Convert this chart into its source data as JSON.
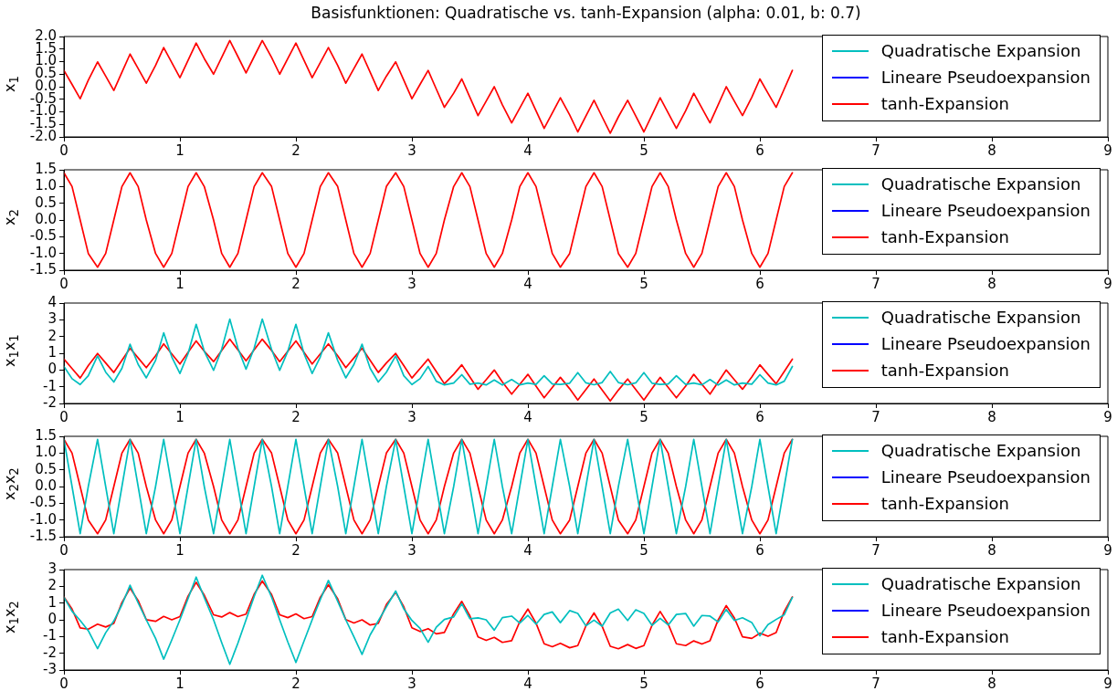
{
  "chart_data": [
    {
      "type": "line",
      "title": "Basisfunktionen: Quadratische vs. tanh-Expansion (alpha: 0.01, b: 0.7)",
      "ylabel": "x$_{1}$",
      "legend": "top right",
      "marker": "none",
      "line_style": "solid",
      "grid": false,
      "xlim": [
        0,
        9
      ],
      "xticks": [
        0,
        1,
        2,
        3,
        4,
        5,
        6,
        7,
        8,
        9
      ],
      "ylim": [
        -2,
        2
      ],
      "yticks": [
        {
          "value": -2,
          "label": "-2.0"
        },
        {
          "value": -1.5,
          "label": "-1.5"
        },
        {
          "value": -1,
          "label": "-1.0"
        },
        {
          "value": -0.5,
          "label": "-0.5"
        },
        {
          "value": 0,
          "label": "0.0"
        },
        {
          "value": 0.5,
          "label": "0.5"
        },
        {
          "value": 1,
          "label": "1.0"
        },
        {
          "value": 1.5,
          "label": "1.5"
        },
        {
          "value": 2,
          "label": "2.0"
        }
      ],
      "x": [
        0,
        0.07,
        0.14,
        0.21,
        0.29,
        0.36,
        0.43,
        0.5,
        0.57,
        0.64,
        0.71,
        0.79,
        0.86,
        0.93,
        1.0,
        1.07,
        1.14,
        1.21,
        1.29,
        1.36,
        1.43,
        1.5,
        1.57,
        1.64,
        1.71,
        1.79,
        1.86,
        1.93,
        2.0,
        2.07,
        2.14,
        2.21,
        2.28,
        2.36,
        2.43,
        2.5,
        2.57,
        2.64,
        2.71,
        2.78,
        2.86,
        2.93,
        3.0,
        3.07,
        3.14,
        3.21,
        3.28,
        3.36,
        3.43,
        3.5,
        3.57,
        3.64,
        3.71,
        3.78,
        3.86,
        3.93,
        4.0,
        4.07,
        4.14,
        4.21,
        4.28,
        4.36,
        4.43,
        4.5,
        4.57,
        4.64,
        4.71,
        4.78,
        4.86,
        4.93,
        5.0,
        5.07,
        5.14,
        5.21,
        5.28,
        5.36,
        5.43,
        5.5,
        5.57,
        5.64,
        5.71,
        5.78,
        5.85,
        5.93,
        6.0,
        6.07,
        6.14,
        6.21,
        6.28
      ],
      "series": [
        {
          "name": "Quadratische Expansion",
          "color": "#00bfbf",
          "values": [
            null,
            null,
            null,
            null,
            null,
            null,
            null,
            null,
            null,
            null,
            null,
            null,
            null,
            null,
            null,
            null,
            null,
            null,
            null,
            null,
            null,
            null,
            null,
            null,
            null,
            null,
            null,
            null,
            null,
            null,
            null,
            null,
            null,
            null,
            null,
            null,
            null,
            null,
            null,
            null,
            null,
            null,
            null,
            null,
            null,
            null,
            null,
            null,
            null,
            null,
            null,
            null,
            null,
            null,
            null,
            null,
            null,
            null,
            null,
            null,
            null,
            null,
            null,
            null,
            null,
            null,
            null,
            null,
            null,
            null,
            null,
            null,
            null,
            null,
            null,
            null,
            null,
            null,
            null,
            null,
            null,
            null,
            null,
            null,
            null,
            null,
            null,
            null,
            null
          ]
        },
        {
          "name": "Lineare Pseudoexpansion",
          "color": "#0000ff",
          "values": [
            null,
            null,
            null,
            null,
            null,
            null,
            null,
            null,
            null,
            null,
            null,
            null,
            null,
            null,
            null,
            null,
            null,
            null,
            null,
            null,
            null,
            null,
            null,
            null,
            null,
            null,
            null,
            null,
            null,
            null,
            null,
            null,
            null,
            null,
            null,
            null,
            null,
            null,
            null,
            null,
            null,
            null,
            null,
            null,
            null,
            null,
            null,
            null,
            null,
            null,
            null,
            null,
            null,
            null,
            null,
            null,
            null,
            null,
            null,
            null,
            null,
            null,
            null,
            null,
            null,
            null,
            null,
            null,
            null,
            null,
            null,
            null,
            null,
            null,
            null,
            null,
            null,
            null,
            null,
            null,
            null,
            null,
            null,
            null,
            null,
            null,
            null,
            null,
            null
          ]
        },
        {
          "name": "tanh-Expansion",
          "color": "#ff0000",
          "values": [
            0.65,
            0.09,
            -0.48,
            0.26,
            0.99,
            0.42,
            -0.15,
            0.58,
            1.3,
            0.72,
            0.14,
            0.85,
            1.56,
            0.96,
            0.36,
            1.05,
            1.74,
            1.12,
            0.5,
            1.17,
            1.84,
            1.2,
            0.55,
            1.2,
            1.84,
            1.17,
            0.5,
            1.12,
            1.74,
            1.05,
            0.36,
            0.96,
            1.56,
            0.85,
            0.14,
            0.72,
            1.3,
            0.58,
            -0.15,
            0.42,
            0.99,
            0.26,
            -0.48,
            0.09,
            0.65,
            -0.09,
            -0.82,
            -0.26,
            0.31,
            -0.42,
            -1.15,
            -0.58,
            0,
            -0.72,
            -1.44,
            -0.85,
            -0.26,
            -0.96,
            -1.66,
            -1.05,
            -0.44,
            -1.12,
            -1.8,
            -1.17,
            -0.54,
            -1.2,
            -1.85,
            -1.2,
            -0.54,
            -1.17,
            -1.8,
            -1.12,
            -0.44,
            -1.05,
            -1.66,
            -0.96,
            -0.26,
            -0.85,
            -1.44,
            -0.72,
            0,
            -0.58,
            -1.15,
            -0.42,
            0.31,
            -0.26,
            -0.82,
            -0.09,
            0.65
          ]
        }
      ]
    },
    {
      "type": "line",
      "ylabel": "x$_{2}$",
      "legend": "top right",
      "marker": "none",
      "line_style": "solid",
      "grid": false,
      "xlim": [
        0,
        9
      ],
      "xticks": [
        0,
        1,
        2,
        3,
        4,
        5,
        6,
        7,
        8,
        9
      ],
      "ylim": [
        -1.5,
        1.5
      ],
      "yticks": [
        {
          "value": -1.5,
          "label": "-1.5"
        },
        {
          "value": -1,
          "label": "-1.0"
        },
        {
          "value": -0.5,
          "label": "-0.5"
        },
        {
          "value": 0,
          "label": "0.0"
        },
        {
          "value": 0.5,
          "label": "0.5"
        },
        {
          "value": 1,
          "label": "1.0"
        },
        {
          "value": 1.5,
          "label": "1.5"
        }
      ],
      "x": [
        0,
        0.07,
        0.14,
        0.21,
        0.29,
        0.36,
        0.43,
        0.5,
        0.57,
        0.64,
        0.71,
        0.79,
        0.86,
        0.93,
        1.0,
        1.07,
        1.14,
        1.21,
        1.29,
        1.36,
        1.43,
        1.5,
        1.57,
        1.64,
        1.71,
        1.79,
        1.86,
        1.93,
        2.0,
        2.07,
        2.14,
        2.21,
        2.28,
        2.36,
        2.43,
        2.5,
        2.57,
        2.64,
        2.71,
        2.78,
        2.86,
        2.93,
        3.0,
        3.07,
        3.14,
        3.21,
        3.28,
        3.36,
        3.43,
        3.5,
        3.57,
        3.64,
        3.71,
        3.78,
        3.86,
        3.93,
        4.0,
        4.07,
        4.14,
        4.21,
        4.28,
        4.36,
        4.43,
        4.5,
        4.57,
        4.64,
        4.71,
        4.78,
        4.86,
        4.93,
        5.0,
        5.07,
        5.14,
        5.21,
        5.28,
        5.36,
        5.43,
        5.5,
        5.57,
        5.64,
        5.71,
        5.78,
        5.85,
        5.93,
        6.0,
        6.07,
        6.14,
        6.21,
        6.28
      ],
      "series": [
        {
          "name": "Quadratische Expansion",
          "color": "#00bfbf",
          "values": [
            null,
            null,
            null,
            null,
            null,
            null,
            null,
            null,
            null,
            null,
            null,
            null,
            null,
            null,
            null,
            null,
            null,
            null,
            null,
            null,
            null,
            null,
            null,
            null,
            null,
            null,
            null,
            null,
            null,
            null,
            null,
            null,
            null,
            null,
            null,
            null,
            null,
            null,
            null,
            null,
            null,
            null,
            null,
            null,
            null,
            null,
            null,
            null,
            null,
            null,
            null,
            null,
            null,
            null,
            null,
            null,
            null,
            null,
            null,
            null,
            null,
            null,
            null,
            null,
            null,
            null,
            null,
            null,
            null,
            null,
            null,
            null,
            null,
            null,
            null,
            null,
            null,
            null,
            null,
            null,
            null,
            null,
            null,
            null,
            null,
            null,
            null,
            null,
            null
          ]
        },
        {
          "name": "Lineare Pseudoexpansion",
          "color": "#0000ff",
          "values": [
            null,
            null,
            null,
            null,
            null,
            null,
            null,
            null,
            null,
            null,
            null,
            null,
            null,
            null,
            null,
            null,
            null,
            null,
            null,
            null,
            null,
            null,
            null,
            null,
            null,
            null,
            null,
            null,
            null,
            null,
            null,
            null,
            null,
            null,
            null,
            null,
            null,
            null,
            null,
            null,
            null,
            null,
            null,
            null,
            null,
            null,
            null,
            null,
            null,
            null,
            null,
            null,
            null,
            null,
            null,
            null,
            null,
            null,
            null,
            null,
            null,
            null,
            null,
            null,
            null,
            null,
            null,
            null,
            null,
            null,
            null,
            null,
            null,
            null,
            null,
            null,
            null,
            null,
            null,
            null,
            null,
            null,
            null,
            null,
            null,
            null,
            null,
            null,
            null
          ]
        },
        {
          "name": "tanh-Expansion",
          "color": "#ff0000",
          "values": [
            1.41,
            1,
            0,
            -1,
            -1.41,
            -1,
            0,
            1,
            1.41,
            1,
            0,
            -1,
            -1.41,
            -1,
            0,
            1,
            1.41,
            1,
            0,
            -1,
            -1.41,
            -1,
            0,
            1,
            1.41,
            1,
            0,
            -1,
            -1.41,
            -1,
            0,
            1,
            1.41,
            1,
            0,
            -1,
            -1.41,
            -1,
            0,
            1,
            1.41,
            1,
            0,
            -1,
            -1.41,
            -1,
            0,
            1,
            1.41,
            1,
            0,
            -1,
            -1.41,
            -1,
            0,
            1,
            1.41,
            1,
            0,
            -1,
            -1.41,
            -1,
            0,
            1,
            1.41,
            1,
            0,
            -1,
            -1.41,
            -1,
            0,
            1,
            1.41,
            1,
            0,
            -1,
            -1.41,
            -1,
            0,
            1,
            1.41,
            1,
            0,
            -1,
            -1.41,
            -1,
            0,
            1,
            1.41
          ]
        }
      ]
    },
    {
      "type": "line",
      "ylabel": "x$_{1}$x$_{1}$",
      "legend": "top right",
      "marker": "none",
      "line_style": "solid",
      "grid": false,
      "xlim": [
        0,
        9
      ],
      "xticks": [
        0,
        1,
        2,
        3,
        4,
        5,
        6,
        7,
        8,
        9
      ],
      "ylim": [
        -2,
        4
      ],
      "yticks": [
        -2,
        -1,
        0,
        1,
        2,
        3,
        4
      ],
      "x": [
        0,
        0.07,
        0.14,
        0.21,
        0.29,
        0.36,
        0.43,
        0.5,
        0.57,
        0.64,
        0.71,
        0.79,
        0.86,
        0.93,
        1.0,
        1.07,
        1.14,
        1.21,
        1.29,
        1.36,
        1.43,
        1.5,
        1.57,
        1.64,
        1.71,
        1.79,
        1.86,
        1.93,
        2.0,
        2.07,
        2.14,
        2.21,
        2.28,
        2.36,
        2.43,
        2.5,
        2.57,
        2.64,
        2.71,
        2.78,
        2.86,
        2.93,
        3.0,
        3.07,
        3.14,
        3.21,
        3.28,
        3.36,
        3.43,
        3.5,
        3.57,
        3.64,
        3.71,
        3.78,
        3.86,
        3.93,
        4.0,
        4.07,
        4.14,
        4.21,
        4.28,
        4.36,
        4.43,
        4.5,
        4.57,
        4.64,
        4.71,
        4.78,
        4.86,
        4.93,
        5.0,
        5.07,
        5.14,
        5.21,
        5.28,
        5.36,
        5.43,
        5.5,
        5.57,
        5.64,
        5.71,
        5.78,
        5.85,
        5.93,
        6.0,
        6.07,
        6.14,
        6.21,
        6.28
      ],
      "series": [
        {
          "name": "Quadratische Expansion",
          "color": "#00bfbf",
          "values": [
            0.21,
            -0.52,
            -0.87,
            -0.34,
            0.84,
            -0.13,
            -0.72,
            0.1,
            1.54,
            0.33,
            -0.47,
            0.57,
            2.22,
            0.78,
            -0.21,
            0.97,
            2.73,
            1.12,
            -0.02,
            1.23,
            3.04,
            1.3,
            0.05,
            1.3,
            3.04,
            1.23,
            -0.02,
            1.12,
            2.73,
            0.97,
            -0.21,
            0.78,
            2.22,
            0.57,
            -0.47,
            0.33,
            1.54,
            0.1,
            -0.72,
            -0.13,
            0.84,
            -0.34,
            -0.87,
            -0.52,
            0.21,
            -0.67,
            -0.89,
            -0.78,
            -0.28,
            -0.85,
            -0.78,
            -0.89,
            -0.6,
            -0.9,
            -0.57,
            -0.89,
            -0.78,
            -0.86,
            -0.34,
            -0.83,
            -0.86,
            -0.79,
            -0.16,
            -0.77,
            -0.88,
            -0.75,
            -0.09,
            -0.75,
            -0.88,
            -0.77,
            -0.16,
            -0.79,
            -0.86,
            -0.83,
            -0.34,
            -0.86,
            -0.78,
            -0.89,
            -0.57,
            -0.9,
            -0.6,
            -0.89,
            -0.78,
            -0.85,
            -0.28,
            -0.78,
            -0.89,
            -0.67,
            0.21
          ]
        },
        {
          "name": "Lineare Pseudoexpansion",
          "color": "#0000ff",
          "values": [
            null,
            null,
            null,
            null,
            null,
            null,
            null,
            null,
            null,
            null,
            null,
            null,
            null,
            null,
            null,
            null,
            null,
            null,
            null,
            null,
            null,
            null,
            null,
            null,
            null,
            null,
            null,
            null,
            null,
            null,
            null,
            null,
            null,
            null,
            null,
            null,
            null,
            null,
            null,
            null,
            null,
            null,
            null,
            null,
            null,
            null,
            null,
            null,
            null,
            null,
            null,
            null,
            null,
            null,
            null,
            null,
            null,
            null,
            null,
            null,
            null,
            null,
            null,
            null,
            null,
            null,
            null,
            null,
            null,
            null,
            null,
            null,
            null,
            null,
            null,
            null,
            null,
            null,
            null,
            null,
            null,
            null,
            null,
            null,
            null,
            null,
            null,
            null,
            null
          ]
        },
        {
          "name": "tanh-Expansion",
          "color": "#ff0000",
          "values": [
            0.65,
            0.09,
            -0.48,
            0.26,
            0.99,
            0.42,
            -0.15,
            0.58,
            1.3,
            0.72,
            0.14,
            0.85,
            1.56,
            0.96,
            0.36,
            1.05,
            1.74,
            1.12,
            0.5,
            1.17,
            1.84,
            1.2,
            0.55,
            1.2,
            1.84,
            1.17,
            0.5,
            1.12,
            1.74,
            1.05,
            0.36,
            0.96,
            1.56,
            0.85,
            0.14,
            0.72,
            1.3,
            0.58,
            -0.15,
            0.42,
            0.99,
            0.26,
            -0.48,
            0.09,
            0.65,
            -0.09,
            -0.82,
            -0.26,
            0.31,
            -0.42,
            -1.15,
            -0.58,
            0,
            -0.72,
            -1.44,
            -0.85,
            -0.26,
            -0.96,
            -1.66,
            -1.05,
            -0.44,
            -1.12,
            -1.8,
            -1.17,
            -0.54,
            -1.2,
            -1.85,
            -1.2,
            -0.54,
            -1.17,
            -1.8,
            -1.12,
            -0.44,
            -1.05,
            -1.66,
            -0.96,
            -0.26,
            -0.85,
            -1.44,
            -0.72,
            0,
            -0.58,
            -1.15,
            -0.42,
            0.31,
            -0.26,
            -0.82,
            -0.09,
            0.65
          ]
        }
      ]
    },
    {
      "type": "line",
      "ylabel": "x$_{2}$x$_{2}$",
      "legend": "top right",
      "marker": "none",
      "line_style": "solid",
      "grid": false,
      "xlim": [
        0,
        9
      ],
      "xticks": [
        0,
        1,
        2,
        3,
        4,
        5,
        6,
        7,
        8,
        9
      ],
      "ylim": [
        -1.5,
        1.5
      ],
      "yticks": [
        {
          "value": -1.5,
          "label": "-1.5"
        },
        {
          "value": -1,
          "label": "-1.0"
        },
        {
          "value": -0.5,
          "label": "-0.5"
        },
        {
          "value": 0,
          "label": "0.0"
        },
        {
          "value": 0.5,
          "label": "0.5"
        },
        {
          "value": 1,
          "label": "1.0"
        },
        {
          "value": 1.5,
          "label": "1.5"
        }
      ],
      "x": [
        0,
        0.07,
        0.14,
        0.21,
        0.29,
        0.36,
        0.43,
        0.5,
        0.57,
        0.64,
        0.71,
        0.79,
        0.86,
        0.93,
        1.0,
        1.07,
        1.14,
        1.21,
        1.29,
        1.36,
        1.43,
        1.5,
        1.57,
        1.64,
        1.71,
        1.79,
        1.86,
        1.93,
        2.0,
        2.07,
        2.14,
        2.21,
        2.28,
        2.36,
        2.43,
        2.5,
        2.57,
        2.64,
        2.71,
        2.78,
        2.86,
        2.93,
        3.0,
        3.07,
        3.14,
        3.21,
        3.28,
        3.36,
        3.43,
        3.5,
        3.57,
        3.64,
        3.71,
        3.78,
        3.86,
        3.93,
        4.0,
        4.07,
        4.14,
        4.21,
        4.28,
        4.36,
        4.43,
        4.5,
        4.57,
        4.64,
        4.71,
        4.78,
        4.86,
        4.93,
        5.0,
        5.07,
        5.14,
        5.21,
        5.28,
        5.36,
        5.43,
        5.5,
        5.57,
        5.64,
        5.71,
        5.78,
        5.85,
        5.93,
        6.0,
        6.07,
        6.14,
        6.21,
        6.28
      ],
      "series": [
        {
          "name": "Quadratische Expansion",
          "color": "#00bfbf",
          "values": [
            1.41,
            0,
            -1.41,
            0,
            1.41,
            0,
            -1.41,
            0,
            1.41,
            0,
            -1.41,
            0,
            1.41,
            0,
            -1.41,
            0,
            1.41,
            0,
            -1.41,
            0,
            1.41,
            0,
            -1.41,
            0,
            1.41,
            0,
            -1.41,
            0,
            1.41,
            0,
            -1.41,
            0,
            1.41,
            0,
            -1.41,
            0,
            1.41,
            0,
            -1.41,
            0,
            1.41,
            0,
            -1.41,
            0,
            1.41,
            0,
            -1.41,
            0,
            1.41,
            0,
            -1.41,
            0,
            1.41,
            0,
            -1.41,
            0,
            1.41,
            0,
            -1.41,
            0,
            1.41,
            0,
            -1.41,
            0,
            1.41,
            0,
            -1.41,
            0,
            1.41,
            0,
            -1.41,
            0,
            1.41,
            0,
            -1.41,
            0,
            1.41,
            0,
            -1.41,
            0,
            1.41,
            0,
            -1.41,
            0,
            1.41,
            0,
            -1.41,
            0,
            1.41
          ]
        },
        {
          "name": "Lineare Pseudoexpansion",
          "color": "#0000ff",
          "values": [
            null,
            null,
            null,
            null,
            null,
            null,
            null,
            null,
            null,
            null,
            null,
            null,
            null,
            null,
            null,
            null,
            null,
            null,
            null,
            null,
            null,
            null,
            null,
            null,
            null,
            null,
            null,
            null,
            null,
            null,
            null,
            null,
            null,
            null,
            null,
            null,
            null,
            null,
            null,
            null,
            null,
            null,
            null,
            null,
            null,
            null,
            null,
            null,
            null,
            null,
            null,
            null,
            null,
            null,
            null,
            null,
            null,
            null,
            null,
            null,
            null,
            null,
            null,
            null,
            null,
            null,
            null,
            null,
            null,
            null,
            null,
            null,
            null,
            null,
            null,
            null,
            null,
            null,
            null,
            null,
            null,
            null,
            null,
            null,
            null,
            null,
            null,
            null,
            null
          ]
        },
        {
          "name": "tanh-Expansion",
          "color": "#ff0000",
          "values": [
            1.41,
            1,
            0,
            -1,
            -1.41,
            -1,
            0,
            1,
            1.41,
            1,
            0,
            -1,
            -1.41,
            -1,
            0,
            1,
            1.41,
            1,
            0,
            -1,
            -1.41,
            -1,
            0,
            1,
            1.41,
            1,
            0,
            -1,
            -1.41,
            -1,
            0,
            1,
            1.41,
            1,
            0,
            -1,
            -1.41,
            -1,
            0,
            1,
            1.41,
            1,
            0,
            -1,
            -1.41,
            -1,
            0,
            1,
            1.41,
            1,
            0,
            -1,
            -1.41,
            -1,
            0,
            1,
            1.41,
            1,
            0,
            -1,
            -1.41,
            -1,
            0,
            1,
            1.41,
            1,
            0,
            -1,
            -1.41,
            -1,
            0,
            1,
            1.41,
            1,
            0,
            -1,
            -1.41,
            -1,
            0,
            1,
            1.41,
            1,
            0,
            -1,
            -1.41,
            -1,
            0,
            1,
            1.41
          ]
        }
      ]
    },
    {
      "type": "line",
      "ylabel": "x$_{1}$x$_{2}$",
      "legend": "top right",
      "marker": "none",
      "line_style": "solid",
      "grid": false,
      "xlim": [
        0,
        9
      ],
      "xticks": [
        0,
        1,
        2,
        3,
        4,
        5,
        6,
        7,
        8,
        9
      ],
      "ylim": [
        -3,
        3
      ],
      "yticks": [
        -3,
        -2,
        -1,
        0,
        1,
        2,
        3
      ],
      "x": [
        0,
        0.07,
        0.14,
        0.21,
        0.29,
        0.36,
        0.43,
        0.5,
        0.57,
        0.64,
        0.71,
        0.79,
        0.86,
        0.93,
        1.0,
        1.07,
        1.14,
        1.21,
        1.29,
        1.36,
        1.43,
        1.5,
        1.57,
        1.64,
        1.71,
        1.79,
        1.86,
        1.93,
        2.0,
        2.07,
        2.14,
        2.21,
        2.28,
        2.36,
        2.43,
        2.5,
        2.57,
        2.64,
        2.71,
        2.78,
        2.86,
        2.93,
        3.0,
        3.07,
        3.14,
        3.21,
        3.28,
        3.36,
        3.43,
        3.5,
        3.57,
        3.64,
        3.71,
        3.78,
        3.86,
        3.93,
        4.0,
        4.07,
        4.14,
        4.21,
        4.28,
        4.36,
        4.43,
        4.5,
        4.57,
        4.64,
        4.71,
        4.78,
        4.86,
        4.93,
        5.0,
        5.07,
        5.14,
        5.21,
        5.28,
        5.36,
        5.43,
        5.5,
        5.57,
        5.64,
        5.71,
        5.78,
        5.85,
        5.93,
        6.0,
        6.07,
        6.14,
        6.21,
        6.28
      ],
      "series": [
        {
          "name": "Quadratische Expansion",
          "color": "#00bfbf",
          "values": [
            1.34,
            0.51,
            -0.04,
            -0.65,
            -1.72,
            -0.77,
            -0.07,
            0.9,
            2.07,
            1.01,
            0,
            -1.11,
            -2.35,
            -1.2,
            0,
            1.27,
            2.55,
            1.32,
            0,
            -1.36,
            -2.66,
            -1.39,
            0,
            1.39,
            2.66,
            1.36,
            0,
            -1.32,
            -2.55,
            -1.27,
            0,
            1.2,
            2.35,
            1.11,
            0,
            -1.01,
            -2.07,
            -0.9,
            -0.07,
            0.77,
            1.72,
            0.65,
            -0.04,
            -0.51,
            -1.34,
            -0.44,
            0.02,
            0.17,
            0.96,
            0.06,
            0.12,
            0,
            -0.62,
            0.13,
            0.22,
            -0.2,
            0.26,
            -0.26,
            0.32,
            0.47,
            -0.17,
            0.55,
            0.38,
            -0.36,
            -0.02,
            -0.38,
            0.41,
            0.64,
            -0.04,
            0.6,
            0.38,
            -0.33,
            0.09,
            -0.31,
            0.32,
            0.38,
            -0.38,
            0.26,
            0.22,
            -0.13,
            0.62,
            -0.04,
            0.12,
            -0.16,
            -0.96,
            -0.29,
            0.02,
            0.3,
            1.34
          ]
        },
        {
          "name": "Lineare Pseudoexpansion",
          "color": "#0000ff",
          "values": [
            null,
            null,
            null,
            null,
            null,
            null,
            null,
            null,
            null,
            null,
            null,
            null,
            null,
            null,
            null,
            null,
            null,
            null,
            null,
            null,
            null,
            null,
            null,
            null,
            null,
            null,
            null,
            null,
            null,
            null,
            null,
            null,
            null,
            null,
            null,
            null,
            null,
            null,
            null,
            null,
            null,
            null,
            null,
            null,
            null,
            null,
            null,
            null,
            null,
            null,
            null,
            null,
            null,
            null,
            null,
            null,
            null,
            null,
            null,
            null,
            null,
            null,
            null,
            null,
            null,
            null,
            null,
            null,
            null,
            null,
            null,
            null,
            null,
            null,
            null,
            null,
            null,
            null,
            null,
            null,
            null,
            null,
            null,
            null,
            null,
            null,
            null,
            null,
            null
          ]
        },
        {
          "name": "tanh-Expansion",
          "color": "#ff0000",
          "values": [
            1.37,
            0.64,
            -0.48,
            -0.56,
            -0.26,
            -0.43,
            -0.22,
            1.03,
            1.89,
            1.15,
            0.01,
            -0.09,
            0.2,
            0,
            0.19,
            1.41,
            2.24,
            1.47,
            0.3,
            0.17,
            0.43,
            0.19,
            0.34,
            1.53,
            2.32,
            1.51,
            0.3,
            0.13,
            0.35,
            0.07,
            0.19,
            1.34,
            2.1,
            1.25,
            0.01,
            -0.19,
            0,
            -0.31,
            -0.22,
            0.91,
            1.64,
            0.78,
            -0.48,
            -0.7,
            -0.53,
            -0.84,
            -0.76,
            0.36,
            1.1,
            0.23,
            -1.02,
            -1.23,
            -1.05,
            -1.35,
            -1.25,
            -0.11,
            0.64,
            -0.2,
            -1.43,
            -1.61,
            -1.4,
            -1.67,
            -1.54,
            -0.37,
            0.41,
            -0.39,
            -1.58,
            -1.73,
            -1.48,
            -1.71,
            -1.54,
            -0.33,
            0.5,
            -0.27,
            -1.43,
            -1.54,
            -1.26,
            -1.45,
            -1.25,
            -0.01,
            0.85,
            0.11,
            -1.02,
            -1.11,
            -0.8,
            -0.98,
            -0.76,
            0.5,
            1.37
          ]
        }
      ]
    }
  ]
}
